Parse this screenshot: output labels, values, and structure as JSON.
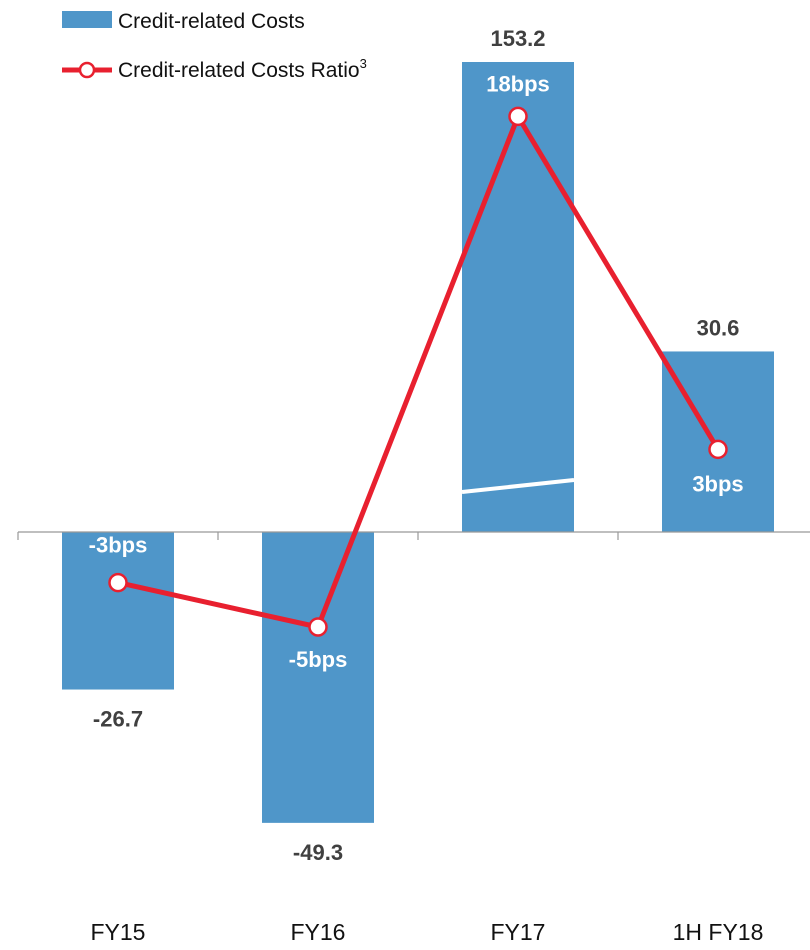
{
  "legend": {
    "bar_label": "Credit-related Costs",
    "line_label": "Credit-related Costs Ratio",
    "line_sup": "3"
  },
  "colors": {
    "bar": "#4f96c9",
    "line": "#e8202f",
    "marker_fill": "#ffffff",
    "axis": "#999999",
    "break": "#ffffff"
  },
  "chart_data": {
    "type": "bar",
    "categories": [
      "FY15",
      "FY16",
      "FY17",
      "1H FY18"
    ],
    "axis_break": "FY17",
    "grid": false,
    "legend_position": "top-left",
    "series": [
      {
        "name": "Credit-related Costs",
        "type": "bar",
        "values": [
          -26.7,
          -49.3,
          153.2,
          30.6
        ],
        "labels": [
          "-26.7",
          "-49.3",
          "153.2",
          "30.6"
        ]
      },
      {
        "name": "Credit-related Costs Ratio",
        "type": "line",
        "values": [
          -3,
          -5,
          18,
          3
        ],
        "labels": [
          "-3bps",
          "-5bps",
          "18bps",
          "3bps"
        ]
      }
    ]
  }
}
